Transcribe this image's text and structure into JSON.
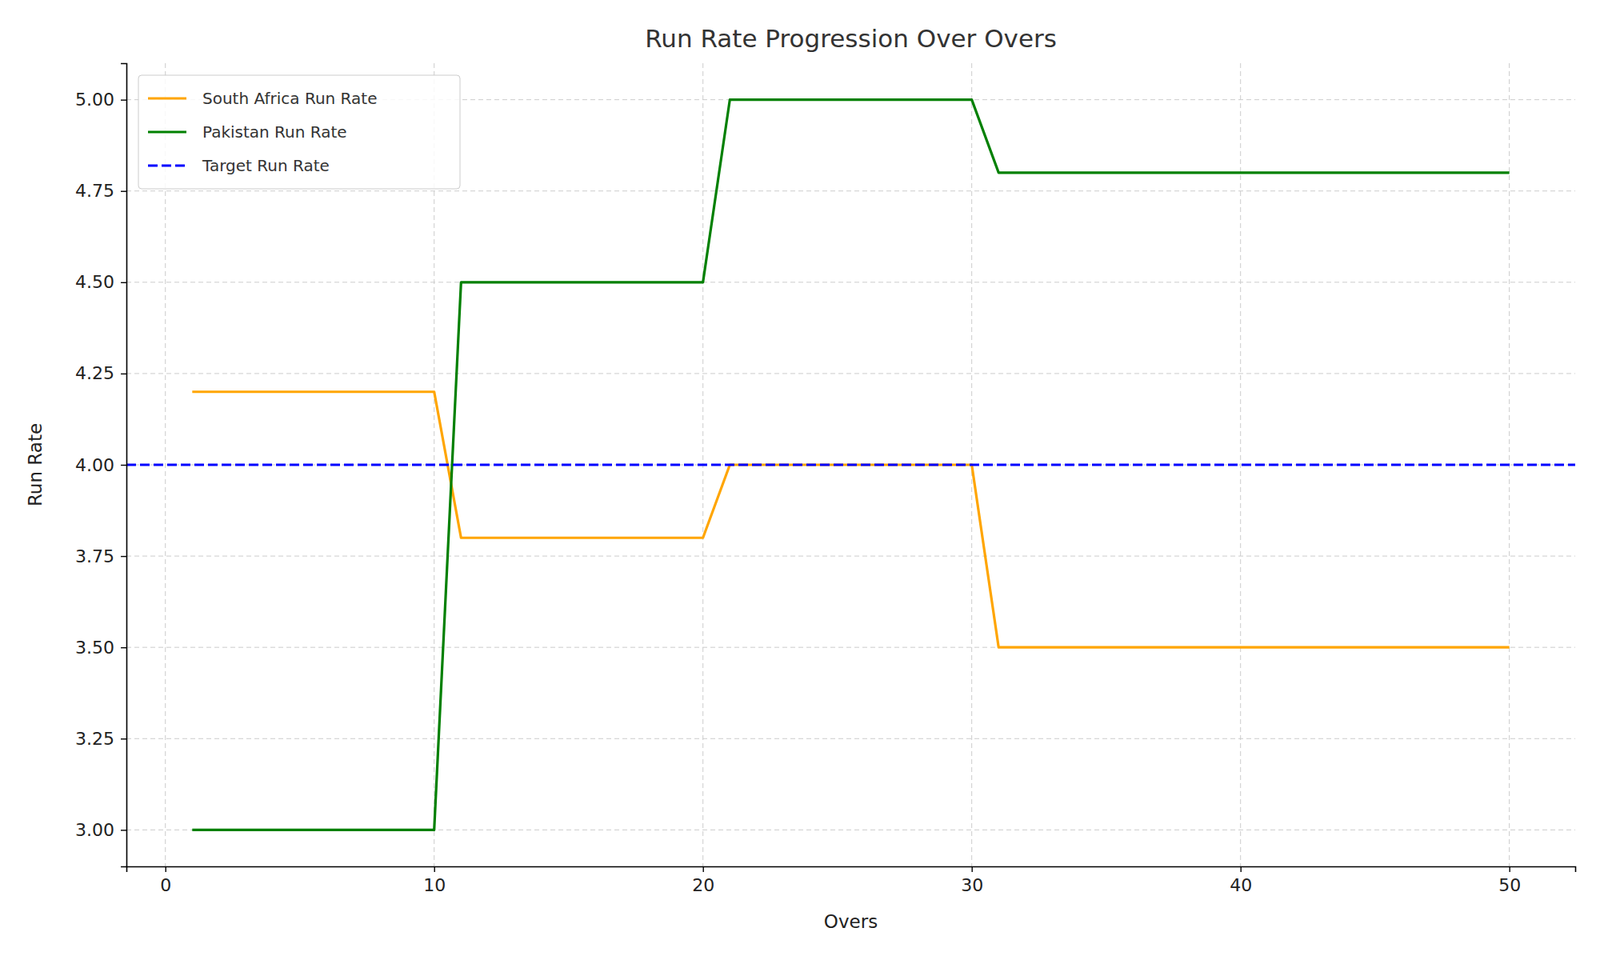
{
  "chart_data": {
    "type": "line",
    "title": "Run Rate Progression Over Overs",
    "x_label": "Overs",
    "y_label": "Run Rate",
    "x": [
      1,
      2,
      3,
      4,
      5,
      6,
      7,
      8,
      9,
      10,
      11,
      12,
      13,
      14,
      15,
      16,
      17,
      18,
      19,
      20,
      21,
      22,
      23,
      24,
      25,
      26,
      27,
      28,
      29,
      30,
      31,
      32,
      33,
      34,
      35,
      36,
      37,
      38,
      39,
      40,
      41,
      42,
      43,
      44,
      45,
      46,
      47,
      48,
      49,
      50
    ],
    "series": [
      {
        "name": "South Africa Run Rate",
        "color": "#ffa500",
        "line_style": "solid",
        "values": [
          4.2,
          4.2,
          4.2,
          4.2,
          4.2,
          4.2,
          4.2,
          4.2,
          4.2,
          4.2,
          3.8,
          3.8,
          3.8,
          3.8,
          3.8,
          3.8,
          3.8,
          3.8,
          3.8,
          3.8,
          4.0,
          4.0,
          4.0,
          4.0,
          4.0,
          4.0,
          4.0,
          4.0,
          4.0,
          4.0,
          3.5,
          3.5,
          3.5,
          3.5,
          3.5,
          3.5,
          3.5,
          3.5,
          3.5,
          3.5,
          3.5,
          3.5,
          3.5,
          3.5,
          3.5,
          3.5,
          3.5,
          3.5,
          3.5,
          3.5
        ]
      },
      {
        "name": "Pakistan Run Rate",
        "color": "#008000",
        "line_style": "solid",
        "values": [
          3.0,
          3.0,
          3.0,
          3.0,
          3.0,
          3.0,
          3.0,
          3.0,
          3.0,
          3.0,
          4.5,
          4.5,
          4.5,
          4.5,
          4.5,
          4.5,
          4.5,
          4.5,
          4.5,
          4.5,
          5.0,
          5.0,
          5.0,
          5.0,
          5.0,
          5.0,
          5.0,
          5.0,
          5.0,
          5.0,
          4.8,
          4.8,
          4.8,
          4.8,
          4.8,
          4.8,
          4.8,
          4.8,
          4.8,
          4.8,
          4.8,
          4.8,
          4.8,
          4.8,
          4.8,
          4.8,
          4.8,
          4.8,
          4.8,
          4.8
        ]
      },
      {
        "name": "Target Run Rate",
        "color": "#0000ff",
        "line_style": "dashed",
        "x": [
          -1.45,
          52.45
        ],
        "values": [
          4.0,
          4.0
        ]
      }
    ],
    "xlim": [
      -1.45,
      52.45
    ],
    "xticks": [
      0,
      10,
      20,
      30,
      40,
      50
    ],
    "ylim": [
      2.9,
      5.1
    ],
    "yticks": [
      {
        "value": 3,
        "label": "3.00"
      },
      {
        "value": 3.25,
        "label": "3.25"
      },
      {
        "value": 3.5,
        "label": "3.50"
      },
      {
        "value": 3.75,
        "label": "3.75"
      },
      {
        "value": 4,
        "label": "4.00"
      },
      {
        "value": 4.25,
        "label": "4.25"
      },
      {
        "value": 4.5,
        "label": "4.50"
      },
      {
        "value": 4.75,
        "label": "4.75"
      },
      {
        "value": 5,
        "label": "5.00"
      }
    ],
    "grid": true,
    "legend": "upper left"
  }
}
